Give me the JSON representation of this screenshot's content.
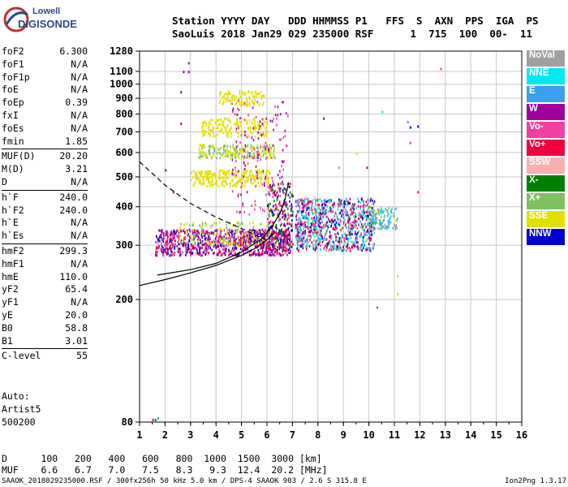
{
  "logo": {
    "line1": "Lowell",
    "line2": "DIGISONDE"
  },
  "header": {
    "line1": "Station YYYY DAY   DDD HHMMSS P1   FFS  S  AXN  PPS  IGA  PS",
    "line2": "SaoLuis 2018 Jan29 029 235000 RSF      1  715  100  00-  11"
  },
  "params": [
    [
      {
        "k": "foF2",
        "v": "6.300"
      },
      {
        "k": "foF1",
        "v": "N/A"
      },
      {
        "k": "foF1p",
        "v": "N/A"
      },
      {
        "k": "foE",
        "v": "N/A"
      },
      {
        "k": "foEp",
        "v": "0.39"
      },
      {
        "k": "fxI",
        "v": "N/A"
      },
      {
        "k": "foEs",
        "v": "N/A"
      },
      {
        "k": "fmin",
        "v": "1.85"
      }
    ],
    [
      {
        "k": "MUF(D)",
        "v": "20.20"
      },
      {
        "k": "M(D)",
        "v": "3.21"
      },
      {
        "k": "D",
        "v": "N/A"
      }
    ],
    [
      {
        "k": "h`F",
        "v": "240.0"
      },
      {
        "k": "h`F2",
        "v": "240.0"
      },
      {
        "k": "h`E",
        "v": "N/A"
      },
      {
        "k": "h`Es",
        "v": "N/A"
      }
    ],
    [
      {
        "k": "hmF2",
        "v": "299.3"
      },
      {
        "k": "hmF1",
        "v": "N/A"
      },
      {
        "k": "hmE",
        "v": "110.0"
      },
      {
        "k": "yF2",
        "v": "65.4"
      },
      {
        "k": "yF1",
        "v": "N/A"
      },
      {
        "k": "yE",
        "v": "20.0"
      },
      {
        "k": "B0",
        "v": "58.8"
      },
      {
        "k": "B1",
        "v": "3.01"
      }
    ],
    [
      {
        "k": "C-level",
        "v": "55"
      }
    ]
  ],
  "auto": {
    "line1": "Auto:",
    "line2": "Artist5",
    "line3": "500200"
  },
  "bottom": {
    "d_line": "D      100   200   400   600   800  1000  1500  3000 [km]",
    "muf_line": "MUF    6.6   6.7   7.0   7.5   8.3   9.3  12.4  20.2 [MHz]"
  },
  "footer": {
    "left": "SAAOK_2018029235000.RSF / 300fx256h 50 kHz 5.0 km / DPS-4 SAAOK 903 / 2.6 S 315.8 E",
    "right": "Ion2Png 1.3.17"
  },
  "legend": [
    {
      "label": "NoVal",
      "color": "#a0a0a0"
    },
    {
      "label": "NNE",
      "color": "#00e8f0"
    },
    {
      "label": "E",
      "color": "#3aa0f0"
    },
    {
      "label": "W",
      "color": "#a000a0"
    },
    {
      "label": "Vo-",
      "color": "#f040a0"
    },
    {
      "label": "Vo+",
      "color": "#f00040"
    },
    {
      "label": "SSW",
      "color": "#f8b0b0"
    },
    {
      "label": "X-",
      "color": "#008000"
    },
    {
      "label": "X+",
      "color": "#80c060"
    },
    {
      "label": "SSE",
      "color": "#e0e000"
    },
    {
      "label": "NNW",
      "color": "#0000d0"
    }
  ],
  "chart_data": {
    "type": "scatter",
    "x_ticks": [
      "1",
      "2",
      "3",
      "4",
      "5",
      "6",
      "7",
      "8",
      "9",
      "10",
      "11",
      "12",
      "13",
      "14",
      "15",
      "16"
    ],
    "y_ticks": [
      "80",
      "200",
      "300",
      "400",
      "500",
      "600",
      "700",
      "800",
      "900",
      "1000",
      "1100",
      "1280"
    ],
    "xlim": [
      1,
      16
    ],
    "ylim": [
      80,
      1280
    ],
    "y_scale": "log",
    "grid": true,
    "legend_placement": "right",
    "bands": [
      {
        "f0": 1.6,
        "f1": 6.9,
        "h0": 280,
        "h1": 340,
        "colors": [
          "#a000a0",
          "#f040a0",
          "#f00040",
          "#a000a0",
          "#0000d0"
        ],
        "n": 900
      },
      {
        "f0": 2.5,
        "f1": 6.2,
        "h0": 300,
        "h1": 360,
        "colors": [
          "#e0e000",
          "#80c060"
        ],
        "n": 160
      },
      {
        "f0": 6.0,
        "f1": 7.0,
        "h0": 290,
        "h1": 480,
        "colors": [
          "#f00040",
          "#f040a0",
          "#0000d0",
          "#008000"
        ],
        "n": 260
      },
      {
        "f0": 7.1,
        "f1": 10.2,
        "h0": 290,
        "h1": 430,
        "colors": [
          "#00e8f0",
          "#3aa0f0",
          "#a000a0",
          "#f040a0",
          "#f00040",
          "#0000d0",
          "#80c060"
        ],
        "n": 900
      },
      {
        "f0": 10.0,
        "f1": 11.1,
        "h0": 340,
        "h1": 400,
        "colors": [
          "#00e8f0",
          "#3aa0f0",
          "#80c060",
          "#a0a0a0"
        ],
        "n": 120
      },
      {
        "f0": 3.0,
        "f1": 6.1,
        "h0": 470,
        "h1": 530,
        "colors": [
          "#e0e000"
        ],
        "n": 260
      },
      {
        "f0": 3.3,
        "f1": 6.3,
        "h0": 580,
        "h1": 640,
        "colors": [
          "#e0e000",
          "#80c060"
        ],
        "n": 220
      },
      {
        "f0": 3.4,
        "f1": 6.0,
        "h0": 680,
        "h1": 780,
        "colors": [
          "#e0e000"
        ],
        "n": 180
      },
      {
        "f0": 4.1,
        "f1": 5.9,
        "h0": 860,
        "h1": 960,
        "colors": [
          "#e0e000"
        ],
        "n": 110
      },
      {
        "f0": 4.6,
        "f1": 6.8,
        "h0": 380,
        "h1": 900,
        "colors": [
          "#a000a0",
          "#f040a0"
        ],
        "n": 160
      }
    ],
    "sparse_points": [
      {
        "f": 2.9,
        "h": 1180,
        "c": "#a000a0"
      },
      {
        "f": 2.7,
        "h": 1105,
        "c": "#a000a0"
      },
      {
        "f": 2.9,
        "h": 1105,
        "c": "#a000a0"
      },
      {
        "f": 2.6,
        "h": 950,
        "c": "#a000a0"
      },
      {
        "f": 2.6,
        "h": 750,
        "c": "#a000a0"
      },
      {
        "f": 8.2,
        "h": 780,
        "c": "#a000a0"
      },
      {
        "f": 10.5,
        "h": 820,
        "c": "#00e8f0"
      },
      {
        "f": 11.5,
        "h": 760,
        "c": "#3aa0f0"
      },
      {
        "f": 11.6,
        "h": 730,
        "c": "#0000d0"
      },
      {
        "f": 11.9,
        "h": 735,
        "c": "#0000d0"
      },
      {
        "f": 11.6,
        "h": 650,
        "c": "#f040a0"
      },
      {
        "f": 11.9,
        "h": 450,
        "c": "#f00040"
      },
      {
        "f": 12.8,
        "h": 1130,
        "c": "#f040a0"
      },
      {
        "f": 10.3,
        "h": 190,
        "c": "#f040a0"
      },
      {
        "f": 11.1,
        "h": 240,
        "c": "#e0e000"
      },
      {
        "f": 11.1,
        "h": 210,
        "c": "#e0e000"
      },
      {
        "f": 1.6,
        "h": 82,
        "c": "#008000"
      },
      {
        "f": 1.7,
        "h": 83,
        "c": "#3aa0f0"
      },
      {
        "f": 1.5,
        "h": 82,
        "c": "#f00040"
      },
      {
        "f": 2.3,
        "h": 450,
        "c": "#a000a0"
      },
      {
        "f": 2.0,
        "h": 530,
        "c": "#a000a0"
      },
      {
        "f": 9.5,
        "h": 600,
        "c": "#e0e000"
      },
      {
        "f": 9.9,
        "h": 540,
        "c": "#a000a0"
      },
      {
        "f": 8.8,
        "h": 540,
        "c": "#80c060"
      }
    ],
    "curves": [
      {
        "name": "",
        "style": "solid",
        "points": [
          [
            1,
            222
          ],
          [
            2,
            232
          ],
          [
            3,
            244
          ],
          [
            4,
            258
          ],
          [
            5,
            278
          ],
          [
            5.5,
            292
          ],
          [
            6,
            312
          ],
          [
            6.3,
            330
          ]
        ]
      },
      {
        "name": "",
        "style": "solid",
        "points": [
          [
            1.7,
            240
          ],
          [
            3,
            250
          ],
          [
            4,
            262
          ],
          [
            5,
            285
          ],
          [
            5.8,
            315
          ],
          [
            6.2,
            345
          ],
          [
            6.5,
            380
          ],
          [
            6.7,
            420
          ],
          [
            6.85,
            480
          ]
        ]
      },
      {
        "name": "",
        "style": "dashed",
        "points": [
          [
            1,
            560
          ],
          [
            2,
            470
          ],
          [
            3,
            410
          ],
          [
            4,
            370
          ],
          [
            5,
            340
          ],
          [
            5.5,
            325
          ],
          [
            6,
            312
          ]
        ]
      }
    ]
  }
}
